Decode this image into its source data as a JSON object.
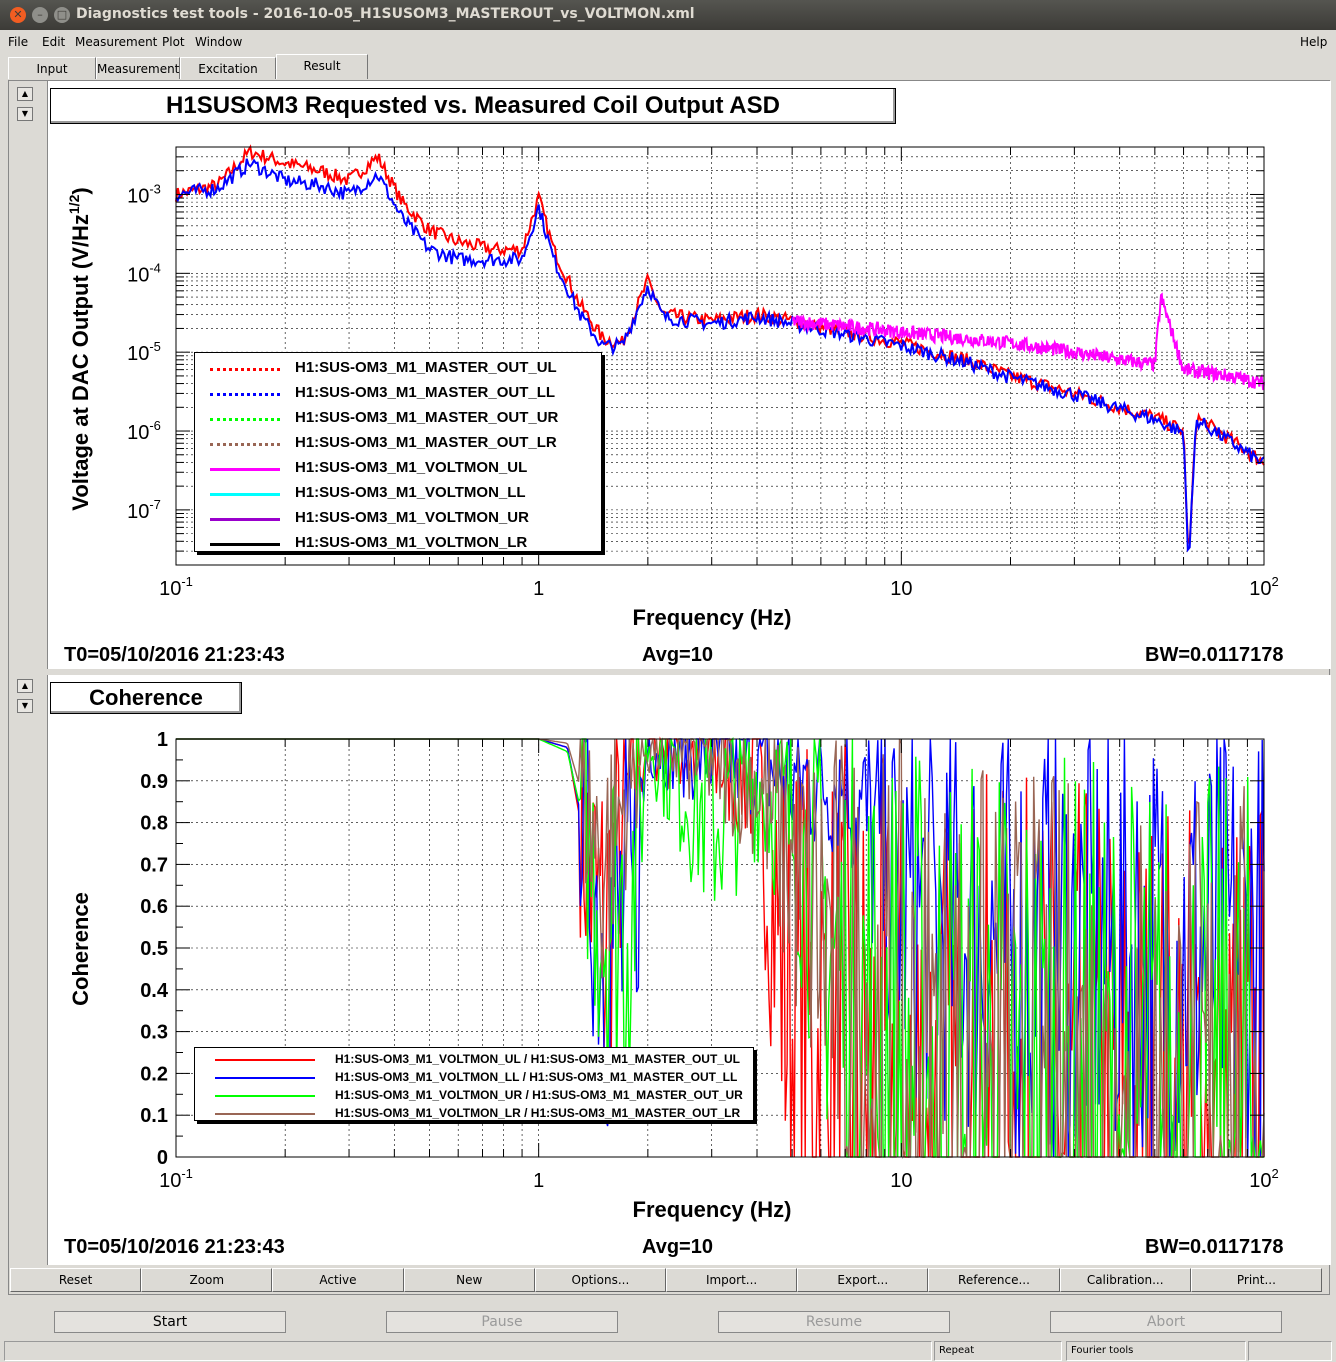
{
  "window": {
    "title": "Diagnostics test tools - 2016-10-05_H1SUSOM3_MASTEROUT_vs_VOLTMON.xml"
  },
  "menu": {
    "items": [
      {
        "label": "File",
        "mnemonic": "F"
      },
      {
        "label": "Edit",
        "mnemonic": "E"
      },
      {
        "label": "Measurement",
        "mnemonic": "M"
      },
      {
        "label": "Plot",
        "mnemonic": "P"
      },
      {
        "label": "Window",
        "mnemonic": "W"
      }
    ],
    "help": "Help"
  },
  "tabs": [
    "Input",
    "Measurement",
    "Excitation",
    "Result"
  ],
  "active_tab": "Result",
  "plot1": {
    "title": "H1SUSOM3 Requested vs. Measured Coil Output ASD",
    "ylabel_main": "Voltage at DAC Output (V/Hz",
    "ylabel_sup": "1/2",
    "ylabel_close": ")",
    "xlabel": "Frequency (Hz)",
    "t0": "T0=05/10/2016 21:23:43",
    "avg": "Avg=10",
    "bw": "BW=0.0117178",
    "legend": [
      {
        "name": "H1:SUS-OM3_M1_MASTER_OUT_UL",
        "color": "#ff0000",
        "style": "dotted"
      },
      {
        "name": "H1:SUS-OM3_M1_MASTER_OUT_LL",
        "color": "#0000ff",
        "style": "dotted"
      },
      {
        "name": "H1:SUS-OM3_M1_MASTER_OUT_UR",
        "color": "#00ff00",
        "style": "dotted"
      },
      {
        "name": "H1:SUS-OM3_M1_MASTER_OUT_LR",
        "color": "#996655",
        "style": "dotted"
      },
      {
        "name": "H1:SUS-OM3_M1_VOLTMON_UL",
        "color": "#ff00ff",
        "style": "solid"
      },
      {
        "name": "H1:SUS-OM3_M1_VOLTMON_LL",
        "color": "#00ffff",
        "style": "solid"
      },
      {
        "name": "H1:SUS-OM3_M1_VOLTMON_UR",
        "color": "#9900cc",
        "style": "solid"
      },
      {
        "name": "H1:SUS-OM3_M1_VOLTMON_LR",
        "color": "#000000",
        "style": "solid"
      }
    ]
  },
  "plot2": {
    "title": "Coherence",
    "ylabel": "Coherence",
    "xlabel": "Frequency (Hz)",
    "t0": "T0=05/10/2016 21:23:43",
    "avg": "Avg=10",
    "bw": "BW=0.0117178",
    "legend": [
      {
        "name": "H1:SUS-OM3_M1_VOLTMON_UL / H1:SUS-OM3_M1_MASTER_OUT_UL",
        "color": "#ff0000"
      },
      {
        "name": "H1:SUS-OM3_M1_VOLTMON_LL / H1:SUS-OM3_M1_MASTER_OUT_LL",
        "color": "#0000ff"
      },
      {
        "name": "H1:SUS-OM3_M1_VOLTMON_UR / H1:SUS-OM3_M1_MASTER_OUT_UR",
        "color": "#00ff00"
      },
      {
        "name": "H1:SUS-OM3_M1_VOLTMON_LR / H1:SUS-OM3_M1_MASTER_OUT_LR",
        "color": "#996655"
      }
    ]
  },
  "chart_data": [
    {
      "type": "line",
      "title": "H1SUSOM3 Requested vs. Measured Coil Output ASD",
      "xlabel": "Frequency (Hz)",
      "ylabel": "Voltage at DAC Output (V/Hz1/2)",
      "xscale": "log",
      "yscale": "log",
      "xlim": [
        0.1,
        100
      ],
      "ylim": [
        2e-08,
        0.004
      ],
      "x_ticks": [
        {
          "base": "10",
          "exp": "-1"
        },
        {
          "base": "1",
          "exp": ""
        },
        {
          "base": "10",
          "exp": ""
        },
        {
          "base": "10",
          "exp": "2"
        }
      ],
      "y_ticks": [
        {
          "base": "10",
          "exp": "-3",
          "value": 0.001
        },
        {
          "base": "10",
          "exp": "-4",
          "value": 0.0001
        },
        {
          "base": "10",
          "exp": "-5",
          "value": 1e-05
        },
        {
          "base": "10",
          "exp": "-6",
          "value": 1e-06
        },
        {
          "base": "10",
          "exp": "-7",
          "value": 1e-07
        }
      ],
      "grid": true,
      "legend_position": "bottom-left",
      "series": [
        {
          "name": "H1:SUS-OM3_M1_MASTER_OUT_UL",
          "color": "#ff0000",
          "x": [
            0.1,
            0.13,
            0.16,
            0.2,
            0.25,
            0.3,
            0.36,
            0.42,
            0.5,
            0.6,
            0.75,
            0.9,
            1.0,
            1.1,
            1.3,
            1.5,
            1.7,
            2.0,
            2.2,
            3,
            4,
            5,
            7,
            10,
            15,
            20,
            30,
            40,
            50,
            60,
            62,
            65,
            80,
            100
          ],
          "y": [
            0.001,
            0.0013,
            0.0035,
            0.0025,
            0.002,
            0.0015,
            0.003,
            0.0008,
            0.00035,
            0.00025,
            0.0002,
            0.0002,
            0.0009,
            0.0002,
            4e-05,
            1.5e-05,
            1.3e-05,
            8e-05,
            3e-05,
            2.5e-05,
            3e-05,
            2.5e-05,
            1.8e-05,
            1.3e-05,
            8e-06,
            5e-06,
            3e-06,
            2e-06,
            1.5e-06,
            1e-06,
            2e-08,
            1.5e-06,
            8e-07,
            4e-07
          ]
        },
        {
          "name": "H1:SUS-OM3_M1_MASTER_OUT_LL",
          "color": "#0000ff",
          "x": [
            0.1,
            0.13,
            0.16,
            0.2,
            0.25,
            0.3,
            0.36,
            0.42,
            0.5,
            0.6,
            0.75,
            0.9,
            1.0,
            1.1,
            1.3,
            1.5,
            1.7,
            2.0,
            2.2,
            3,
            4,
            5,
            7,
            10,
            15,
            20,
            30,
            40,
            50,
            60,
            62,
            65,
            80,
            100
          ],
          "y": [
            0.001,
            0.0012,
            0.0025,
            0.0015,
            0.0013,
            0.001,
            0.0018,
            0.0005,
            0.0002,
            0.00015,
            0.00015,
            0.00015,
            0.0007,
            0.00015,
            3e-05,
            1.2e-05,
            1.2e-05,
            7e-05,
            2.8e-05,
            2.3e-05,
            2.8e-05,
            2.3e-05,
            1.7e-05,
            1.2e-05,
            7.5e-06,
            4.8e-06,
            2.9e-06,
            1.9e-06,
            1.4e-06,
            9.5e-07,
            2e-08,
            1.4e-06,
            7.5e-07,
            3.8e-07
          ]
        },
        {
          "name": "H1:SUS-OM3_M1_VOLTMON_UL",
          "color": "#ff00ff",
          "x": [
            5,
            10,
            20,
            30,
            40,
            50,
            52,
            60,
            80,
            100
          ],
          "y": [
            2.5e-05,
            1.8e-05,
            1.3e-05,
            1e-05,
            8e-06,
            7e-06,
            5e-05,
            6e-06,
            5e-06,
            4e-06
          ]
        }
      ]
    },
    {
      "type": "line",
      "title": "Coherence",
      "xlabel": "Frequency (Hz)",
      "ylabel": "Coherence",
      "xscale": "log",
      "xlim": [
        0.1,
        100
      ],
      "ylim": [
        0,
        1
      ],
      "x_ticks": [
        {
          "base": "10",
          "exp": "-1"
        },
        {
          "base": "1",
          "exp": ""
        },
        {
          "base": "10",
          "exp": ""
        },
        {
          "base": "10",
          "exp": "2"
        }
      ],
      "y_ticks": [
        "0",
        "0.1",
        "0.2",
        "0.3",
        "0.4",
        "0.5",
        "0.6",
        "0.7",
        "0.8",
        "0.9",
        "1"
      ],
      "grid": true,
      "legend_position": "bottom-left",
      "series": [
        {
          "name": "H1:SUS-OM3_M1_VOLTMON_UL / H1:SUS-OM3_M1_MASTER_OUT_UL",
          "color": "#ff0000",
          "x": [
            0.1,
            1.0,
            1.2,
            1.5,
            1.8,
            2.0,
            3,
            4,
            5,
            7,
            10,
            20,
            50,
            100
          ],
          "y": [
            1,
            1,
            0.98,
            0.5,
            0.9,
            1,
            0.95,
            0.9,
            0.3,
            0.1,
            0.05,
            0.02,
            0.01,
            0.01
          ]
        },
        {
          "name": "H1:SUS-OM3_M1_VOLTMON_LL / H1:SUS-OM3_M1_MASTER_OUT_LL",
          "color": "#0000ff",
          "x": [
            0.1,
            1.0,
            1.2,
            1.5,
            1.8,
            2.0,
            3,
            4,
            5,
            7,
            10,
            20,
            50,
            100
          ],
          "y": [
            1,
            1,
            0.98,
            0.55,
            0.5,
            1,
            0.96,
            0.95,
            0.9,
            0.9,
            0.6,
            0.5,
            0.5,
            0.5
          ]
        },
        {
          "name": "H1:SUS-OM3_M1_VOLTMON_UR / H1:SUS-OM3_M1_MASTER_OUT_UR",
          "color": "#00ff00",
          "x": [
            0.1,
            1.0,
            1.2,
            1.5,
            1.8,
            2.0,
            3,
            4,
            5,
            7,
            10,
            20,
            50,
            100
          ],
          "y": [
            1,
            1,
            0.97,
            0.6,
            0.6,
            1,
            0.8,
            0.9,
            0.8,
            0.4,
            0.2,
            0.1,
            0.05,
            0.05
          ]
        },
        {
          "name": "H1:SUS-OM3_M1_VOLTMON_LR / H1:SUS-OM3_M1_MASTER_OUT_LR",
          "color": "#996655",
          "x": [
            0.1,
            1.0,
            1.2,
            1.5,
            1.8,
            2.0,
            3,
            4,
            5,
            7,
            10,
            20,
            50,
            100
          ],
          "y": [
            1,
            1,
            0.99,
            0.7,
            0.9,
            1,
            0.95,
            0.9,
            0.7,
            0.4,
            0.1,
            0.05,
            0.02,
            0.02
          ]
        }
      ]
    }
  ],
  "toolbar": [
    "Reset",
    "Zoom",
    "Active",
    "New",
    "Options...",
    "Import...",
    "Export...",
    "Reference...",
    "Calibration...",
    "Print..."
  ],
  "controls": [
    {
      "label": "Start",
      "enabled": true
    },
    {
      "label": "Pause",
      "enabled": false
    },
    {
      "label": "Resume",
      "enabled": false
    },
    {
      "label": "Abort",
      "enabled": false
    }
  ],
  "status": {
    "repeat": "Repeat",
    "fourier": "Fourier tools"
  }
}
